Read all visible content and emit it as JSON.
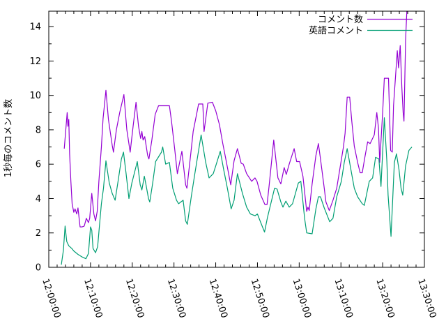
{
  "chart_data": {
    "type": "line",
    "title": "",
    "xlabel": "",
    "ylabel": "1秒毎のコメント数",
    "grid": false,
    "background_color": "#ffffff",
    "border_color": "#000000",
    "legend_position": "top-right-inside",
    "x_unit": "minutes after 12:00:00",
    "x_range_minutes": [
      0,
      90
    ],
    "ylim": [
      0,
      14.9
    ],
    "y_major_ticks": [
      0,
      2,
      4,
      6,
      8,
      10,
      12,
      14
    ],
    "y_minor_ticks": [
      1,
      3,
      5,
      7,
      9,
      11,
      13
    ],
    "x_major_tick_minutes": [
      0,
      10,
      20,
      30,
      40,
      50,
      60,
      70,
      80,
      90
    ],
    "x_tick_labels": [
      "12:00:00",
      "12:10:00",
      "12:20:00",
      "12:30:00",
      "12:40:00",
      "12:50:00",
      "13:00:00",
      "13:10:00",
      "13:20:00",
      "13:30:00"
    ],
    "x_minor_step_minutes": 2,
    "series": [
      {
        "name": "コメント数",
        "color": "#9400d3",
        "points": [
          [
            3.7,
            6.9
          ],
          [
            4.0,
            7.8
          ],
          [
            4.4,
            9.0
          ],
          [
            4.6,
            8.2
          ],
          [
            4.8,
            8.6
          ],
          [
            5.0,
            6.6
          ],
          [
            5.3,
            5.0
          ],
          [
            5.6,
            3.7
          ],
          [
            6.0,
            3.2
          ],
          [
            6.3,
            3.4
          ],
          [
            6.7,
            3.1
          ],
          [
            7.0,
            3.45
          ],
          [
            7.5,
            2.35
          ],
          [
            8.0,
            2.35
          ],
          [
            8.5,
            2.4
          ],
          [
            9.0,
            2.85
          ],
          [
            9.5,
            2.6
          ],
          [
            9.8,
            2.85
          ],
          [
            10.3,
            4.3
          ],
          [
            10.8,
            3.1
          ],
          [
            11.2,
            2.7
          ],
          [
            11.6,
            3.25
          ],
          [
            12.0,
            5.0
          ],
          [
            12.6,
            7.0
          ],
          [
            13.0,
            8.65
          ],
          [
            13.7,
            10.3
          ],
          [
            14.3,
            8.6
          ],
          [
            15.2,
            7.1
          ],
          [
            15.5,
            6.7
          ],
          [
            16.2,
            8.0
          ],
          [
            17.0,
            9.0
          ],
          [
            18.0,
            10.05
          ],
          [
            18.7,
            8.0
          ],
          [
            19.5,
            6.7
          ],
          [
            20.2,
            8.2
          ],
          [
            20.9,
            9.6
          ],
          [
            21.5,
            8.2
          ],
          [
            22.0,
            7.5
          ],
          [
            22.3,
            7.9
          ],
          [
            22.6,
            7.4
          ],
          [
            23.0,
            7.6
          ],
          [
            23.7,
            6.5
          ],
          [
            24.0,
            6.3
          ],
          [
            24.7,
            7.4
          ],
          [
            25.5,
            8.9
          ],
          [
            26.3,
            9.4
          ],
          [
            28.9,
            9.4
          ],
          [
            29.4,
            8.5
          ],
          [
            30.2,
            6.8
          ],
          [
            30.8,
            5.45
          ],
          [
            31.9,
            6.75
          ],
          [
            32.8,
            4.8
          ],
          [
            33.1,
            4.6
          ],
          [
            34.0,
            6.55
          ],
          [
            34.6,
            7.9
          ],
          [
            35.9,
            9.5
          ],
          [
            36.9,
            9.5
          ],
          [
            37.2,
            7.9
          ],
          [
            38.1,
            9.55
          ],
          [
            39.2,
            9.6
          ],
          [
            40.0,
            9.1
          ],
          [
            40.9,
            8.3
          ],
          [
            41.7,
            7.2
          ],
          [
            42.5,
            6.2
          ],
          [
            43.6,
            4.8
          ],
          [
            44.4,
            6.2
          ],
          [
            45.2,
            6.9
          ],
          [
            46.1,
            6.05
          ],
          [
            46.6,
            6.0
          ],
          [
            47.4,
            5.45
          ],
          [
            48.6,
            5.0
          ],
          [
            49.4,
            5.2
          ],
          [
            49.9,
            5.0
          ],
          [
            50.8,
            4.2
          ],
          [
            51.8,
            3.65
          ],
          [
            52.3,
            3.65
          ],
          [
            52.8,
            4.75
          ],
          [
            53.9,
            7.4
          ],
          [
            54.9,
            5.2
          ],
          [
            55.6,
            4.85
          ],
          [
            56.4,
            5.8
          ],
          [
            56.9,
            5.4
          ],
          [
            57.6,
            6.0
          ],
          [
            58.8,
            6.9
          ],
          [
            59.4,
            6.15
          ],
          [
            60.1,
            6.15
          ],
          [
            60.9,
            5.3
          ],
          [
            61.8,
            3.25
          ],
          [
            62.1,
            3.5
          ],
          [
            62.4,
            3.3
          ],
          [
            63.1,
            4.85
          ],
          [
            64.0,
            6.5
          ],
          [
            64.6,
            7.2
          ],
          [
            65.1,
            6.3
          ],
          [
            66.0,
            4.6
          ],
          [
            66.4,
            3.8
          ],
          [
            67.2,
            3.3
          ],
          [
            68.1,
            3.9
          ],
          [
            69.0,
            4.6
          ],
          [
            69.8,
            5.8
          ],
          [
            70.6,
            7.0
          ],
          [
            71.0,
            7.8
          ],
          [
            71.5,
            9.9
          ],
          [
            72.1,
            9.9
          ],
          [
            72.6,
            8.5
          ],
          [
            73.2,
            7.05
          ],
          [
            74.0,
            6.1
          ],
          [
            74.6,
            5.5
          ],
          [
            75.1,
            5.5
          ],
          [
            75.8,
            6.5
          ],
          [
            76.4,
            7.3
          ],
          [
            77.0,
            7.2
          ],
          [
            77.6,
            7.5
          ],
          [
            78.0,
            7.7
          ],
          [
            78.6,
            9.0
          ],
          [
            79.0,
            8.1
          ],
          [
            79.3,
            6.1
          ],
          [
            80.0,
            9.0
          ],
          [
            80.4,
            11.0
          ],
          [
            81.4,
            11.0
          ],
          [
            81.9,
            6.8
          ],
          [
            82.3,
            6.7
          ],
          [
            82.6,
            9.4
          ],
          [
            83.5,
            12.6
          ],
          [
            83.8,
            11.6
          ],
          [
            84.2,
            12.9
          ],
          [
            84.6,
            10.4
          ],
          [
            84.9,
            9.0
          ],
          [
            85.1,
            8.5
          ],
          [
            85.5,
            13.2
          ],
          [
            85.8,
            14.9
          ]
        ]
      },
      {
        "name": "英語コメント",
        "color": "#009e73",
        "points": [
          [
            3.0,
            0.15
          ],
          [
            3.5,
            1.0
          ],
          [
            3.9,
            2.4
          ],
          [
            4.3,
            1.5
          ],
          [
            4.8,
            1.25
          ],
          [
            5.5,
            1.1
          ],
          [
            6.0,
            0.95
          ],
          [
            7.0,
            0.75
          ],
          [
            8.0,
            0.6
          ],
          [
            8.9,
            0.5
          ],
          [
            9.5,
            0.8
          ],
          [
            10.0,
            2.35
          ],
          [
            10.3,
            2.15
          ],
          [
            10.6,
            1.1
          ],
          [
            11.2,
            0.85
          ],
          [
            11.7,
            1.2
          ],
          [
            12.2,
            2.6
          ],
          [
            12.6,
            3.7
          ],
          [
            13.1,
            4.6
          ],
          [
            13.7,
            6.2
          ],
          [
            14.5,
            4.9
          ],
          [
            15.2,
            4.3
          ],
          [
            15.9,
            3.9
          ],
          [
            16.6,
            5.0
          ],
          [
            17.4,
            6.3
          ],
          [
            17.9,
            6.7
          ],
          [
            18.5,
            5.5
          ],
          [
            19.2,
            4.0
          ],
          [
            19.9,
            4.9
          ],
          [
            21.2,
            6.15
          ],
          [
            21.9,
            4.8
          ],
          [
            22.3,
            4.5
          ],
          [
            22.9,
            5.3
          ],
          [
            23.3,
            4.8
          ],
          [
            23.9,
            4.0
          ],
          [
            24.2,
            3.8
          ],
          [
            24.9,
            4.9
          ],
          [
            25.6,
            6.15
          ],
          [
            27.0,
            6.7
          ],
          [
            27.3,
            7.0
          ],
          [
            28.0,
            6.0
          ],
          [
            28.9,
            6.1
          ],
          [
            29.7,
            4.6
          ],
          [
            30.6,
            3.9
          ],
          [
            31.1,
            3.7
          ],
          [
            32.2,
            3.9
          ],
          [
            32.8,
            2.7
          ],
          [
            33.2,
            2.5
          ],
          [
            34.2,
            4.2
          ],
          [
            35.0,
            5.45
          ],
          [
            36.5,
            7.7
          ],
          [
            37.6,
            6.1
          ],
          [
            38.4,
            5.2
          ],
          [
            39.4,
            5.45
          ],
          [
            40.0,
            5.9
          ],
          [
            41.1,
            6.75
          ],
          [
            41.9,
            5.7
          ],
          [
            42.8,
            4.6
          ],
          [
            43.7,
            3.4
          ],
          [
            44.4,
            3.9
          ],
          [
            45.2,
            5.45
          ],
          [
            46.4,
            4.3
          ],
          [
            47.4,
            3.5
          ],
          [
            48.3,
            3.1
          ],
          [
            49.4,
            3.0
          ],
          [
            50.0,
            3.1
          ],
          [
            50.8,
            2.6
          ],
          [
            51.7,
            2.05
          ],
          [
            52.4,
            2.9
          ],
          [
            53.3,
            3.8
          ],
          [
            54.1,
            4.6
          ],
          [
            54.7,
            4.55
          ],
          [
            55.6,
            3.8
          ],
          [
            56.1,
            3.5
          ],
          [
            56.8,
            3.85
          ],
          [
            57.6,
            3.5
          ],
          [
            58.4,
            3.7
          ],
          [
            59.8,
            4.9
          ],
          [
            60.4,
            5.0
          ],
          [
            61.3,
            2.85
          ],
          [
            61.8,
            2.0
          ],
          [
            63.1,
            1.95
          ],
          [
            64.0,
            3.4
          ],
          [
            64.6,
            4.1
          ],
          [
            65.1,
            4.1
          ],
          [
            66.0,
            3.45
          ],
          [
            67.3,
            2.65
          ],
          [
            68.1,
            2.85
          ],
          [
            69.0,
            4.1
          ],
          [
            70.1,
            5.0
          ],
          [
            70.8,
            6.1
          ],
          [
            71.5,
            6.9
          ],
          [
            72.3,
            5.8
          ],
          [
            73.2,
            4.6
          ],
          [
            74.0,
            4.1
          ],
          [
            75.1,
            3.7
          ],
          [
            75.6,
            3.6
          ],
          [
            76.8,
            5.0
          ],
          [
            77.6,
            5.2
          ],
          [
            78.3,
            6.4
          ],
          [
            79.1,
            6.3
          ],
          [
            79.6,
            4.7
          ],
          [
            80.4,
            8.7
          ],
          [
            81.0,
            6.2
          ],
          [
            81.3,
            4.2
          ],
          [
            82.0,
            1.8
          ],
          [
            82.8,
            6.1
          ],
          [
            83.3,
            6.6
          ],
          [
            83.9,
            5.7
          ],
          [
            84.4,
            4.6
          ],
          [
            84.8,
            4.2
          ],
          [
            85.5,
            5.9
          ],
          [
            86.3,
            6.8
          ],
          [
            87.0,
            7.0
          ]
        ]
      }
    ]
  }
}
